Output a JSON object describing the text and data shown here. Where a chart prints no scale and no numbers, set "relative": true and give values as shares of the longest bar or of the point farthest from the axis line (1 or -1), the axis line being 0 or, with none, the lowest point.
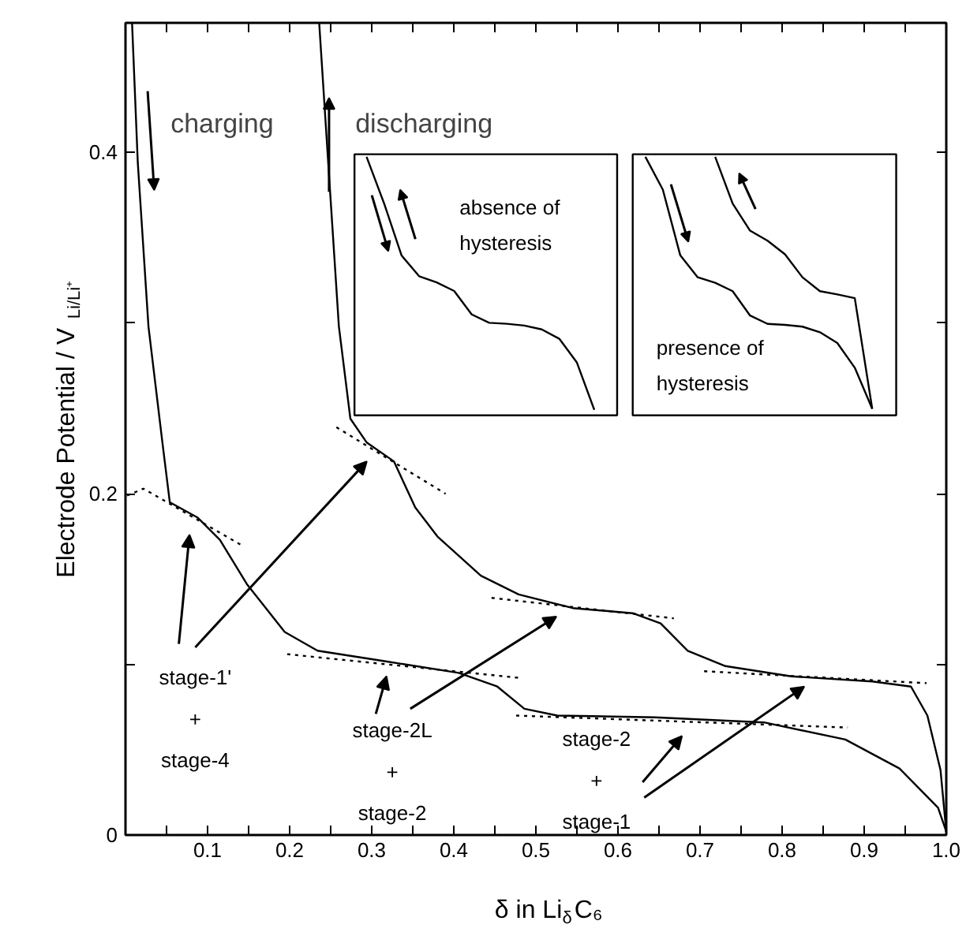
{
  "chart_data": [
    {
      "type": "line",
      "xlabel": "δ in Li$_{δ}$C₆",
      "ylabel": "Electrode Potential / V$_{Li/Li⁺}$",
      "xlim": [
        0,
        1
      ],
      "ylim": [
        0,
        0.476
      ],
      "xticks": [
        {
          "value": 0.05,
          "label": null
        },
        0.1,
        {
          "value": 0.15,
          "label": null
        },
        0.2,
        {
          "value": 0.25,
          "label": null
        },
        0.3,
        {
          "value": 0.35,
          "label": null
        },
        0.4,
        {
          "value": 0.45,
          "label": null
        },
        0.5,
        {
          "value": 0.55,
          "label": null
        },
        0.6,
        {
          "value": 0.65,
          "label": null
        },
        0.7,
        {
          "value": 0.75,
          "label": null
        },
        0.8,
        {
          "value": 0.85,
          "label": null
        },
        0.9,
        {
          "value": 0.95,
          "label": null
        },
        {
          "value": 1,
          "label": "1.0"
        }
      ],
      "yticks": [
        0,
        {
          "value": 0.1,
          "label": null
        },
        0.2,
        {
          "value": 0.3,
          "label": null
        },
        0.4
      ],
      "grid": false,
      "legend": "top left",
      "series": [
        {
          "name": "charging",
          "color": "#000000",
          "line_style": "solid",
          "x": [
            0.008,
            0.015,
            0.028,
            0.045,
            0.054,
            0.088,
            0.115,
            0.148,
            0.194,
            0.234,
            0.314,
            0.406,
            0.453,
            0.486,
            0.526,
            0.645,
            0.778,
            0.877,
            0.943,
            0.99,
            1.0
          ],
          "values": [
            0.476,
            0.394,
            0.298,
            0.23,
            0.195,
            0.186,
            0.173,
            0.147,
            0.119,
            0.108,
            0.102,
            0.095,
            0.087,
            0.074,
            0.07,
            0.069,
            0.066,
            0.056,
            0.039,
            0.016,
            0.002
          ]
        },
        {
          "name": "discharging",
          "color": "#000000",
          "line_style": "solid",
          "x": [
            1.0,
            0.993,
            0.977,
            0.957,
            0.91,
            0.811,
            0.731,
            0.685,
            0.652,
            0.618,
            0.545,
            0.479,
            0.433,
            0.38,
            0.353,
            0.327,
            0.294,
            0.274,
            0.26,
            0.247,
            0.236
          ],
          "values": [
            0.002,
            0.038,
            0.07,
            0.087,
            0.09,
            0.093,
            0.099,
            0.108,
            0.124,
            0.13,
            0.133,
            0.141,
            0.152,
            0.175,
            0.192,
            0.219,
            0.23,
            0.244,
            0.298,
            0.394,
            0.476
          ]
        },
        {
          "color": "#000000",
          "line_style": "dotted",
          "x": [
            0.002,
            0.022,
            0.141
          ],
          "values": [
            0.199,
            0.203,
            0.17
          ]
        },
        {
          "color": "#000000",
          "line_style": "dotted",
          "x": [
            0.257,
            0.39
          ],
          "values": [
            0.239,
            0.2
          ]
        },
        {
          "color": "#000000",
          "line_style": "dotted",
          "x": [
            0.197,
            0.482
          ],
          "values": [
            0.106,
            0.092
          ]
        },
        {
          "color": "#000000",
          "line_style": "dotted",
          "x": [
            0.446,
            0.668
          ],
          "values": [
            0.139,
            0.127
          ]
        },
        {
          "color": "#000000",
          "line_style": "dotted",
          "x": [
            0.476,
            0.88
          ],
          "values": [
            0.07,
            0.063
          ]
        },
        {
          "color": "#000000",
          "line_style": "dotted",
          "x": [
            0.705,
            0.976
          ],
          "values": [
            0.096,
            0.089
          ]
        }
      ],
      "annotations": [
        "stage-1'\n+\nstage-4",
        "stage-2L\n+\nstage-2",
        "stage-2\n+\nstage-1"
      ]
    },
    {
      "type": "line",
      "relative": true,
      "categories": [
        null,
        null,
        null,
        null,
        null,
        null,
        null,
        null,
        null,
        null,
        null,
        null,
        null,
        null
      ],
      "series": [
        {
          "color": "#000000",
          "values": [
            1,
            0.816,
            0.61,
            0.528,
            0.504,
            0.47,
            0.377,
            0.344,
            0.34,
            0.333,
            0.318,
            0.281,
            0.188,
            0
          ]
        }
      ],
      "annotations": [
        "absence of\nhysteresis"
      ]
    },
    {
      "type": "line",
      "relative": true,
      "categories": [
        null,
        null,
        null,
        null,
        null,
        null,
        null,
        null,
        null,
        null,
        null,
        null,
        null,
        null
      ],
      "series": [
        {
          "color": "#000000",
          "values": [
            1,
            0.87,
            0.609,
            0.522,
            0.5,
            0.467,
            0.37,
            0.337,
            0.333,
            0.326,
            0.304,
            0.261,
            0.163,
            0
          ]
        },
        {
          "color": "#000000",
          "values": [
            null,
            null,
            null,
            null,
            1,
            0.815,
            0.707,
            0.667,
            0.613,
            0.522,
            0.467,
            0.454,
            0.439,
            0
          ]
        }
      ],
      "annotations": [
        "presence of\nhysteresis"
      ]
    }
  ]
}
